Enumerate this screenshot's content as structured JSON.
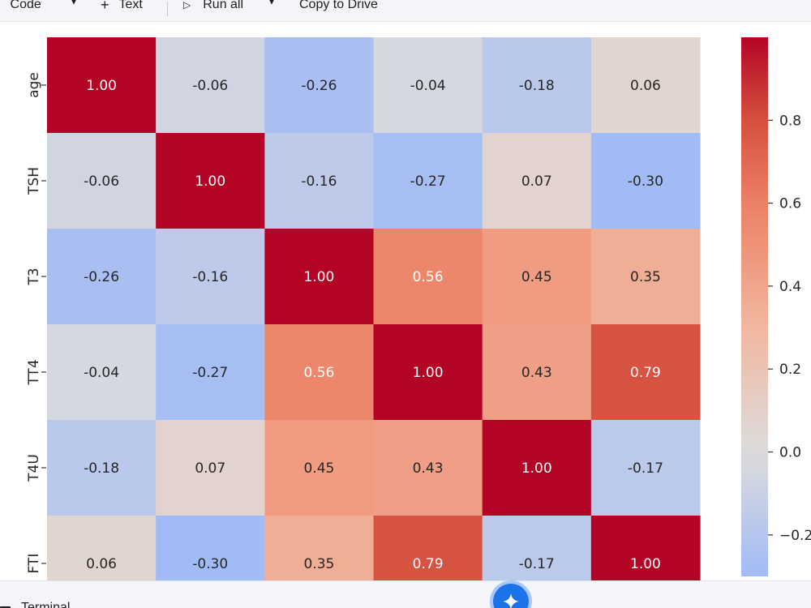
{
  "toolbar": {
    "code_label": "Code",
    "text_label": "Text",
    "run_all_label": "Run all",
    "copy_to_drive_label": "Copy to Drive"
  },
  "statusbar": {
    "terminal_label": "Terminal"
  },
  "chart_data": {
    "type": "heatmap",
    "title": "",
    "xlabel": "",
    "ylabel": "",
    "categories": [
      "age",
      "TSH",
      "T3",
      "TT4",
      "T4U",
      "FTI"
    ],
    "matrix": [
      [
        1.0,
        -0.06,
        -0.26,
        -0.04,
        -0.18,
        0.06
      ],
      [
        -0.06,
        1.0,
        -0.16,
        -0.27,
        0.07,
        -0.3
      ],
      [
        -0.26,
        -0.16,
        1.0,
        0.56,
        0.45,
        0.35
      ],
      [
        -0.04,
        -0.27,
        0.56,
        1.0,
        0.43,
        0.79
      ],
      [
        -0.18,
        0.07,
        0.45,
        0.43,
        1.0,
        -0.17
      ],
      [
        0.06,
        -0.3,
        0.35,
        0.79,
        -0.17,
        1.0
      ]
    ],
    "value_format": "2 decimals",
    "colormap": "coolwarm",
    "vmin": -0.3,
    "vmax": 1.0,
    "colorbar_ticks": [
      "0.8",
      "0.6",
      "0.4",
      "0.2",
      "0.0",
      "−0.2"
    ],
    "colorbar_tick_values": [
      0.8,
      0.6,
      0.4,
      0.2,
      0.0,
      -0.2
    ],
    "colors": {
      "low": "#b1cbfc",
      "mid": "#dddcdc",
      "high": "#b40426"
    }
  }
}
